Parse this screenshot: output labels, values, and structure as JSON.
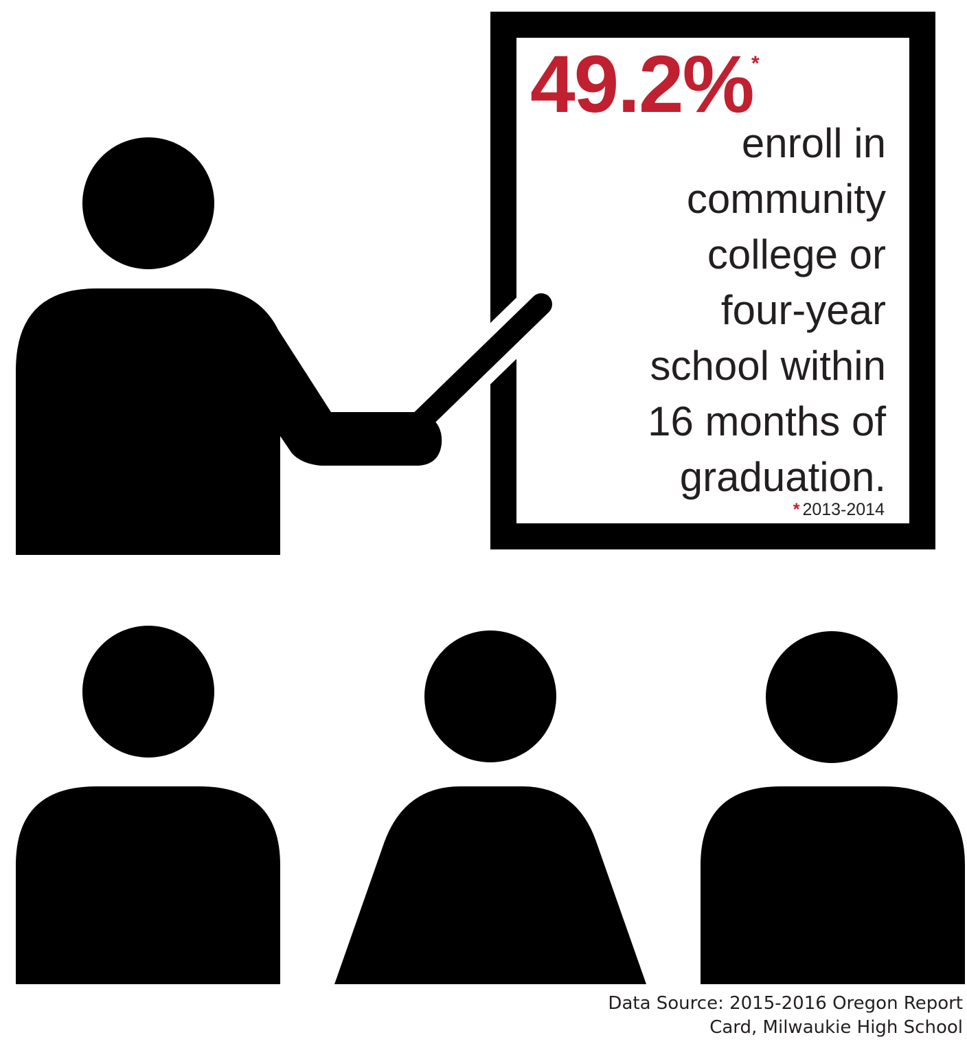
{
  "colors": {
    "accent": "#c0202f",
    "ink": "#000000",
    "text": "#231f20",
    "background": "#ffffff"
  },
  "icons": [
    "teacher-pointing-icon",
    "board-icon",
    "student-icon"
  ],
  "stat": {
    "value": "49.2%",
    "asterisk": "*",
    "lines": [
      "enroll in",
      "community",
      "college or",
      "four-year",
      "school within",
      "16 months of",
      "graduation."
    ]
  },
  "footnote": {
    "mark": "*",
    "text": "2013-2014"
  },
  "source": {
    "lines": [
      "Data Source: 2015-2016 Oregon Report",
      "Card, Milwaukie High School"
    ]
  }
}
